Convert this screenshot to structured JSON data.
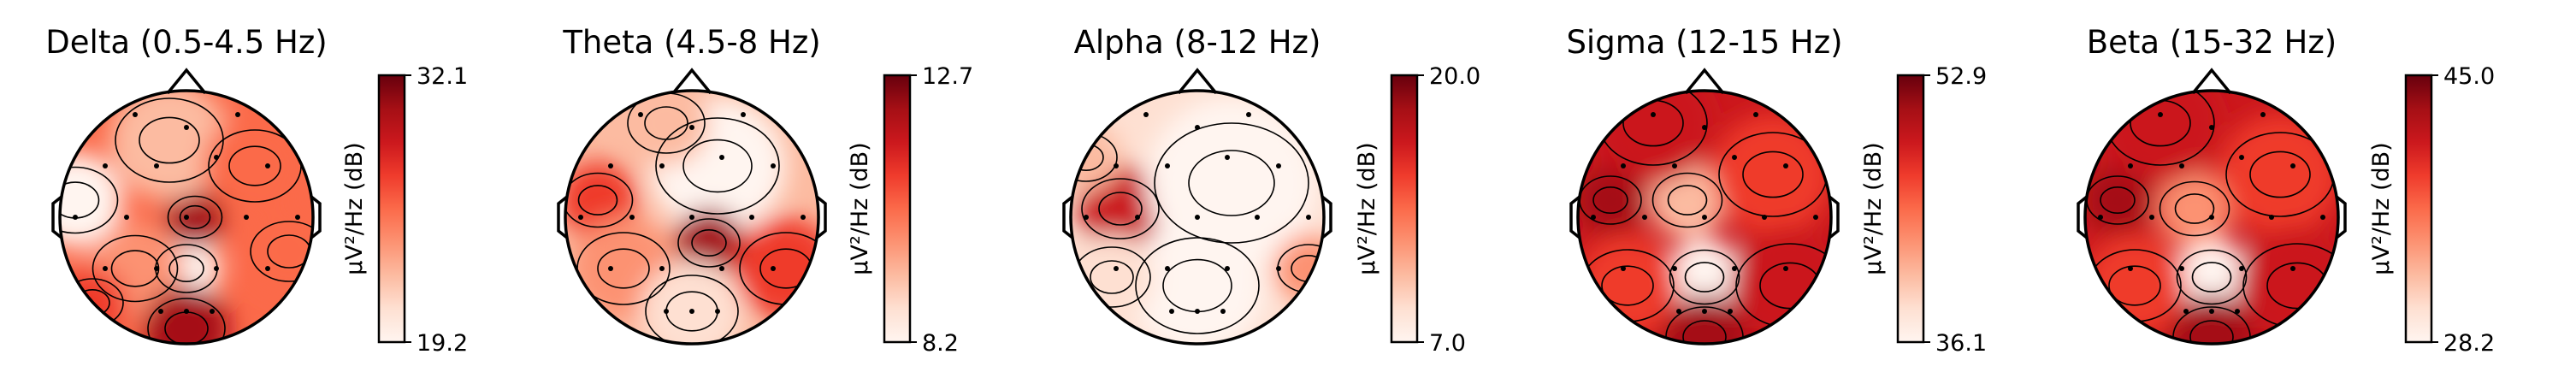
{
  "chart_data": {
    "type": "heatmap",
    "colormap": "Reds",
    "colorbar_label": "µV²/Hz (dB)",
    "grid": false,
    "panels": [
      {
        "title": "Delta (0.5-4.5 Hz)",
        "vmin": 19.2,
        "vmax": 32.1,
        "vmin_label": "19.2",
        "vmax_label": "32.1"
      },
      {
        "title": "Theta (4.5-8 Hz)",
        "vmin": 8.2,
        "vmax": 12.7,
        "vmin_label": "8.2",
        "vmax_label": "12.7"
      },
      {
        "title": "Alpha (8-12 Hz)",
        "vmin": 7.0,
        "vmax": 20.0,
        "vmin_label": "7.0",
        "vmax_label": "20.0"
      },
      {
        "title": "Sigma (12-15 Hz)",
        "vmin": 36.1,
        "vmax": 52.9,
        "vmin_label": "36.1",
        "vmax_label": "52.9"
      },
      {
        "title": "Beta (15-32 Hz)",
        "vmin": 28.2,
        "vmax": 45.0,
        "vmin_label": "28.2",
        "vmax_label": "45.0"
      }
    ]
  },
  "colors": {
    "reds_low": "#fff5f0",
    "reds_mid": "#fb6a4a",
    "reds_high": "#67000d",
    "outline": "#000000"
  }
}
